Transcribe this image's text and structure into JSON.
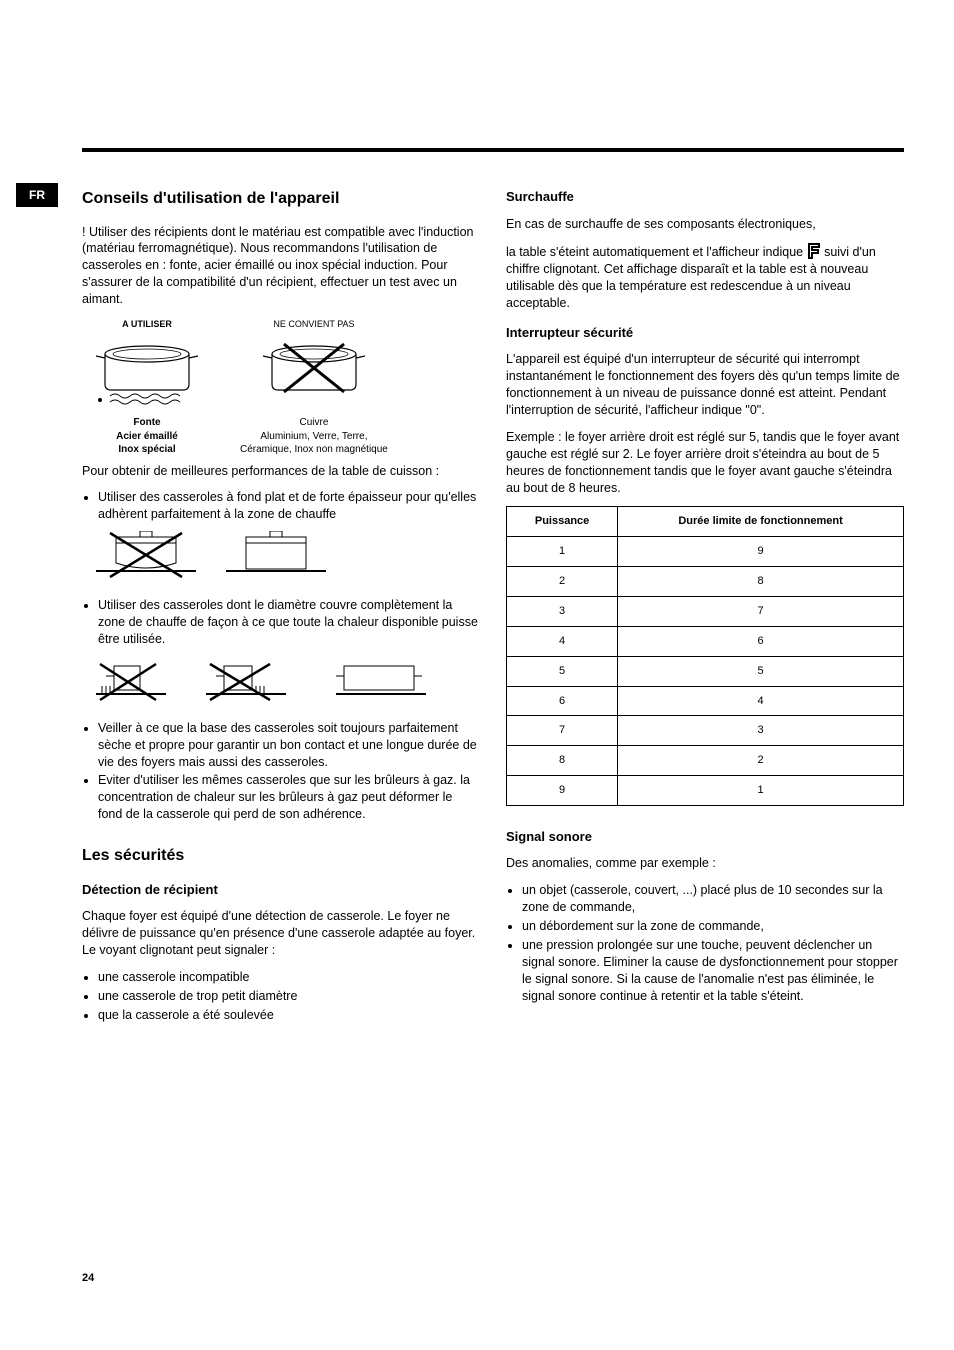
{
  "lang_badge": "FR",
  "page_number": "24",
  "left": {
    "h_conseils": "Conseils d'utilisation de l'appareil",
    "p_intro": "! Utiliser des récipients dont le matériau est compatible avec l'induction (matériau ferromagnétique). Nous recommandons l'utilisation de casseroles en : fonte, acier émaillé ou inox spécial induction. Pour s'assurer de la compatibilité d'un récipient, effectuer un test avec un aimant.",
    "label_use": "A UTILISER",
    "label_nouse": "NE CONVIENT PAS",
    "cap_use_1": "Fonte",
    "cap_use_2": "Acier émaillé",
    "cap_use_3": "Inox spécial",
    "cap_nouse_1": "Cuivre",
    "cap_nouse_2": "Aluminium, Verre, Terre,",
    "cap_nouse_3": "Céramique, Inox non magnétique",
    "p_perf": "Pour obtenir de meilleures performances de la table de cuisson :",
    "li_flat": "Utiliser des casseroles à fond plat et de forte épaisseur pour qu'elles adhèrent parfaitement à la zone de chauffe",
    "li_diam": "Utiliser des casseroles dont le diamètre couvre complètement la zone de chauffe de façon à ce que toute la chaleur disponible puisse être utilisée.",
    "li_dry": "Veiller à ce que la base des casseroles soit toujours parfaitement sèche et propre pour garantir un bon contact et une longue durée de vie des foyers mais aussi des casseroles.",
    "li_gas": "Eviter d'utiliser les mêmes casseroles que sur les brûleurs à gaz. la concentration de chaleur sur les brûleurs à gaz peut déformer le fond de la casserole qui perd de son adhérence.",
    "h_secur": "Les sécurités",
    "h_detect": "Détection de récipient",
    "p_detect": "Chaque foyer est équipé d'une détection de casserole. Le foyer ne délivre de puissance qu'en présence d'une casserole adaptée au foyer. Le voyant clignotant peut signaler :",
    "li_d1": "une casserole incompatible",
    "li_d2": "une casserole de trop petit diamètre",
    "li_d3": "que la casserole a été soulevée"
  },
  "right": {
    "h_surch": "Surchauffe",
    "p_surch1": "En cas de surchauffe de ses composants électroniques,",
    "p_surch2a": "la table s'éteint automatiquement et l'afficheur indique ",
    "p_surch2b": " suivi d'un chiffre clignotant. Cet affichage disparaît et la table est à nouveau utilisable dès que la température est redescendue à un niveau acceptable.",
    "h_inter": "Interrupteur sécurité",
    "p_inter1": "L'appareil est équipé d'un interrupteur de sécurité qui interrompt instantanément le fonctionnement des foyers dès qu'un temps limite de fonctionnement à un niveau de puissance donné est atteint. Pendant l'interruption de sécurité, l'afficheur indique \"0\".",
    "p_inter2": "Exemple : le foyer arrière droit est réglé sur 5, tandis que le foyer avant gauche est réglé sur 2. Le foyer arrière droit s'éteindra au bout de 5 heures de fonctionnement tandis que le foyer avant gauche s'éteindra au bout de 8 heures.",
    "table": {
      "th1": "Puissance",
      "th2": "Durée limite de fonctionnement",
      "rows": [
        [
          "1",
          "9"
        ],
        [
          "2",
          "8"
        ],
        [
          "3",
          "7"
        ],
        [
          "4",
          "6"
        ],
        [
          "5",
          "5"
        ],
        [
          "6",
          "4"
        ],
        [
          "7",
          "3"
        ],
        [
          "8",
          "2"
        ],
        [
          "9",
          "1"
        ]
      ]
    },
    "h_signal": "Signal sonore",
    "p_signal": "Des anomalies, comme par exemple :",
    "li_s1": "un objet (casserole, couvert, ...) placé plus de 10 secondes sur la zone de commande,",
    "li_s2": "un débordement sur la zone de commande,",
    "li_s3": "une pression prolongée sur une touche, peuvent déclencher un signal sonore. Eliminer la cause de dysfonctionnement pour stopper le signal sonore. Si la cause de l'anomalie n'est pas éliminée, le signal sonore continue à retentir et la table s'éteint."
  }
}
